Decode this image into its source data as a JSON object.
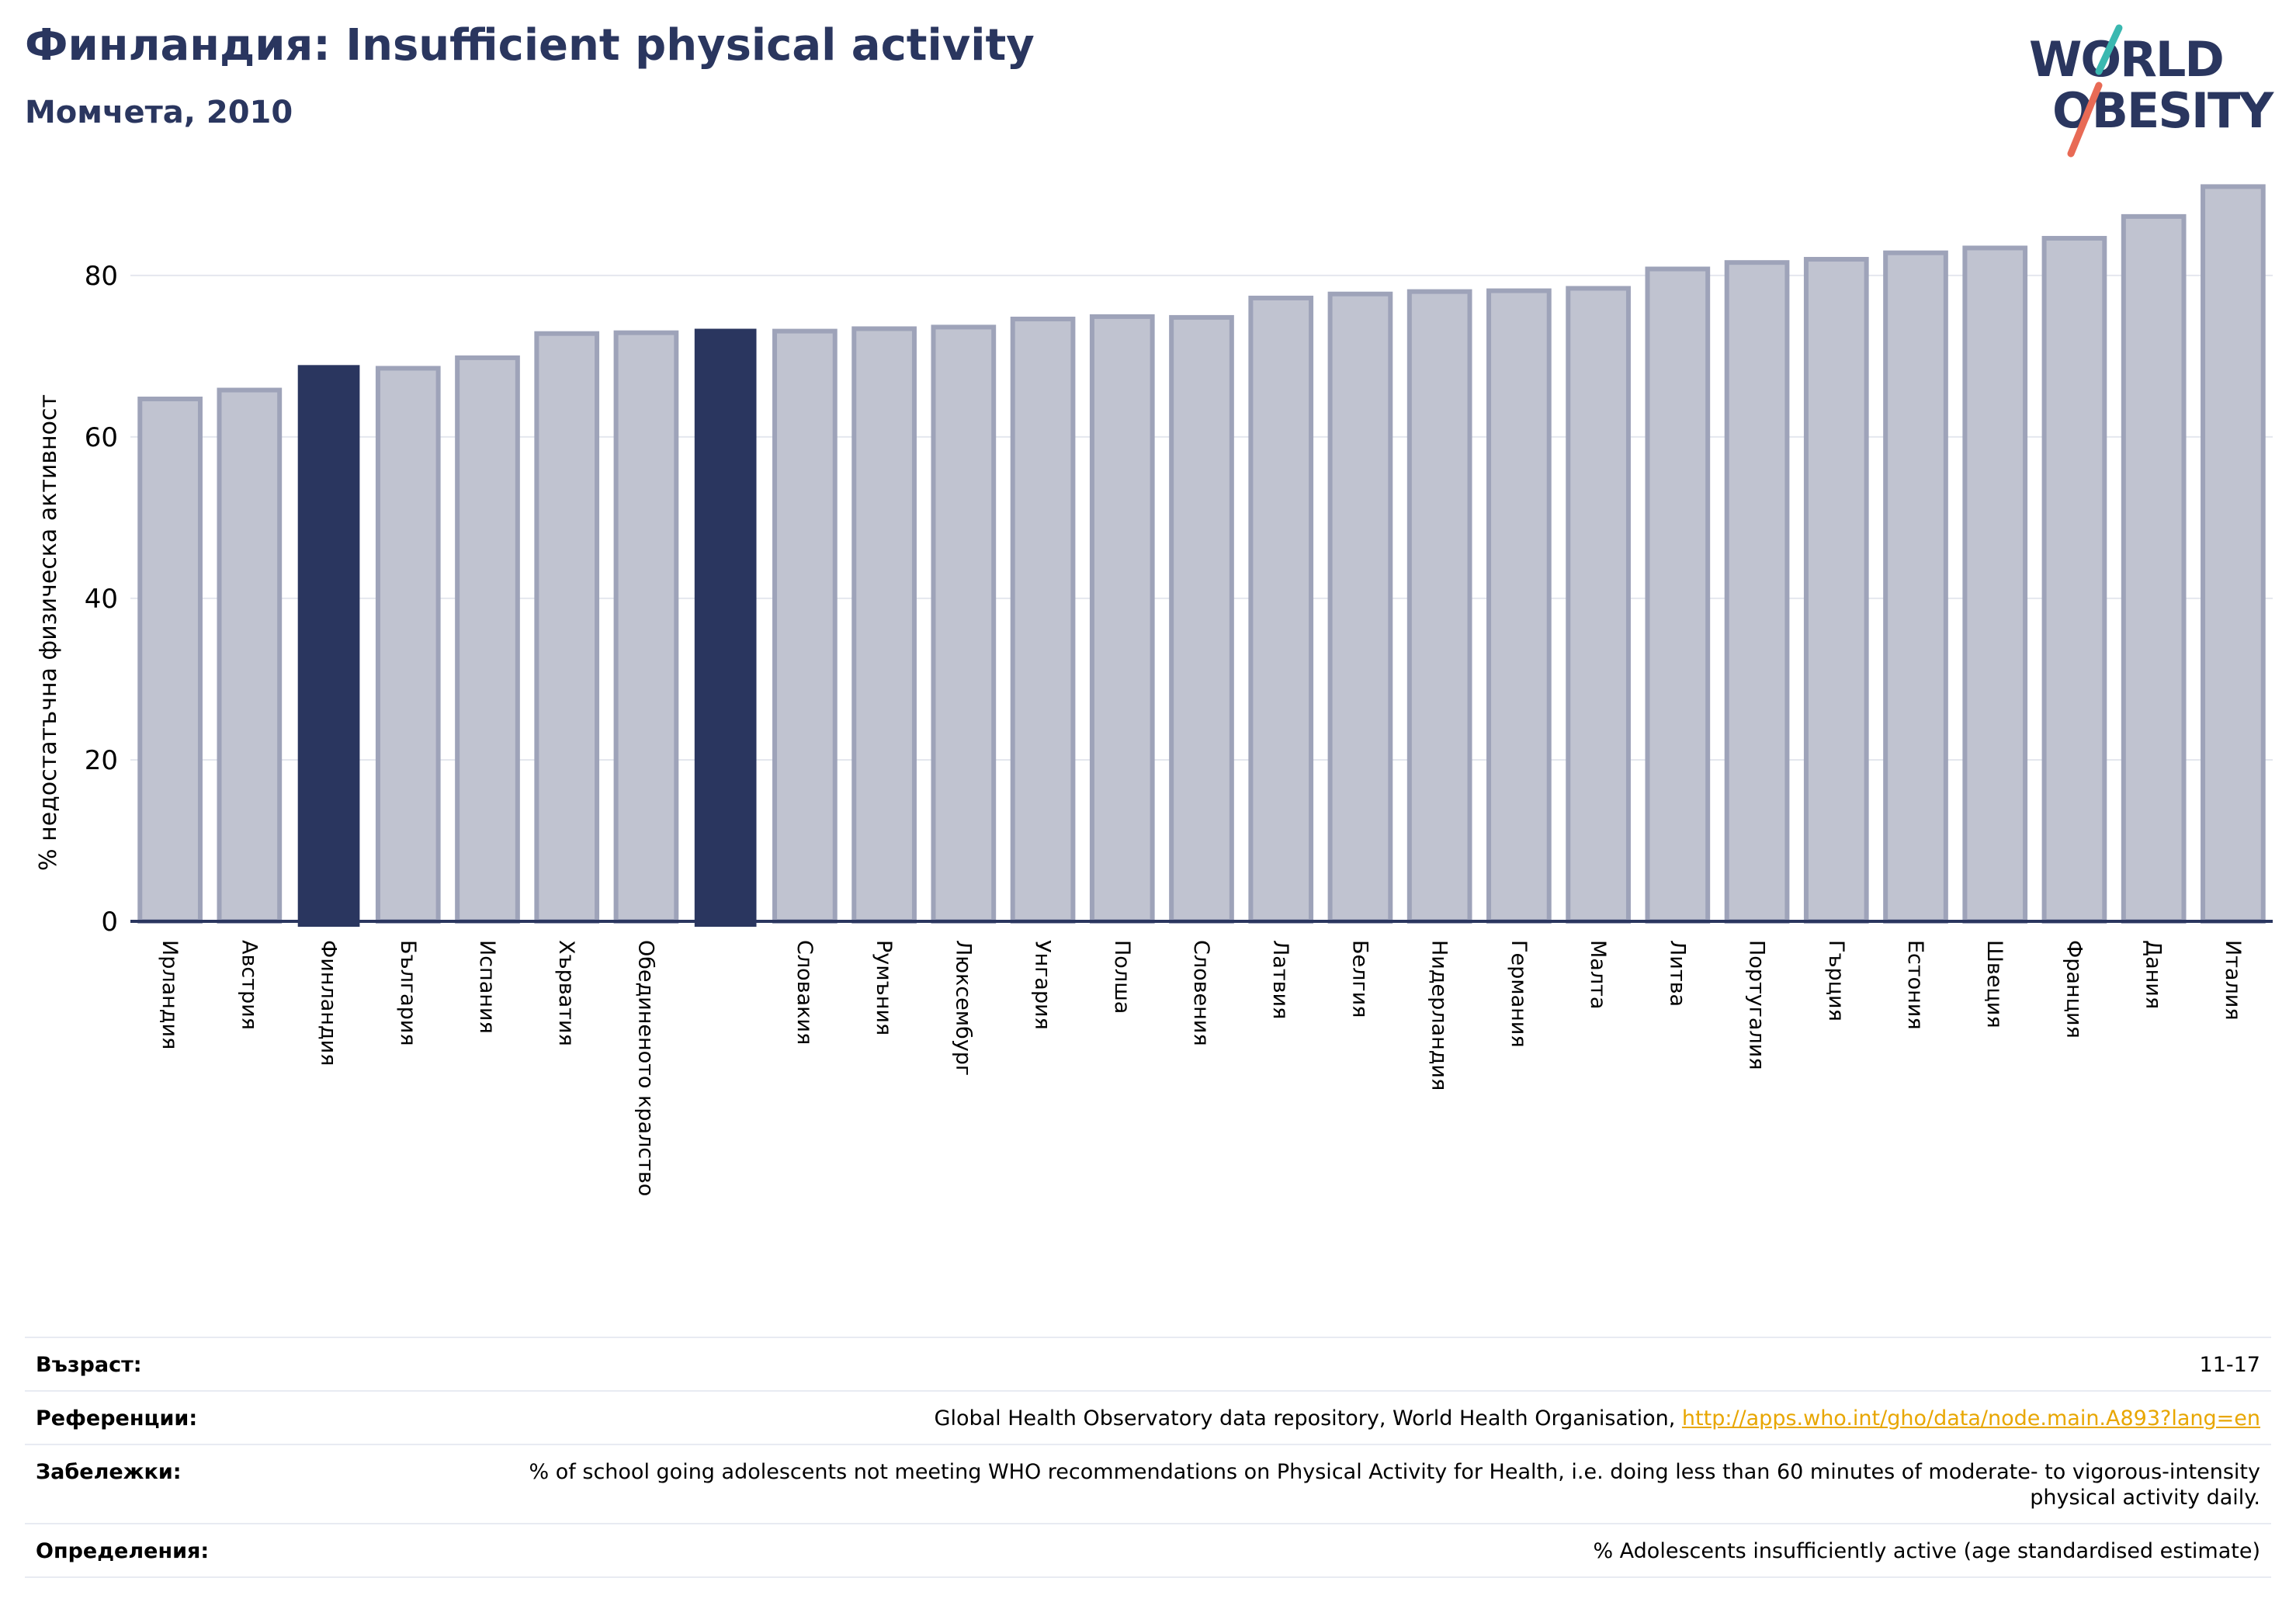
{
  "header": {
    "title": "Финландия: Insufficient physical activity",
    "subtitle": "Момчета, 2010"
  },
  "logo": {
    "line1": "WORLD",
    "line2": "OBESITY",
    "slash_color_top": "#3ab8b0",
    "slash_color_bottom": "#e86a55"
  },
  "colors": {
    "bar": "#c0c3d0",
    "bar_border": "#9ea3b9",
    "highlight": "#2a365f",
    "axis": "#2a365f",
    "grid": "#e4e7ee"
  },
  "chart_data": {
    "type": "bar",
    "ylabel": "% недостатъчна физическа активност",
    "ylim": [
      0,
      92
    ],
    "yticks": [
      0,
      20,
      40,
      60,
      80
    ],
    "grid": true,
    "categories": [
      "Ирландия",
      "Австрия",
      "Финландия",
      "България",
      "Испания",
      "Хърватия",
      "Обединеното кралство",
      "",
      "Словакия",
      "Румъния",
      "Люксембург",
      "Унгария",
      "Полша",
      "Словения",
      "Латвия",
      "Белгия",
      "Нидерландия",
      "Германия",
      "Малта",
      "Литва",
      "Португалия",
      "Гърция",
      "Естония",
      "Швеция",
      "Франция",
      "Дания",
      "Италия"
    ],
    "values": [
      64.7,
      65.8,
      68.8,
      68.5,
      69.8,
      72.8,
      72.9,
      73.3,
      73.1,
      73.4,
      73.6,
      74.6,
      74.9,
      74.8,
      77.2,
      77.7,
      78.0,
      78.1,
      78.4,
      80.8,
      81.6,
      82.0,
      82.8,
      83.4,
      84.6,
      87.3,
      91.0
    ],
    "highlight": [
      2,
      7
    ]
  },
  "footer": {
    "age_label": "Възраст:",
    "age_value": "11-17",
    "refs_label": "Референции:",
    "refs_text": "Global Health Observatory data repository, World Health Organisation, ",
    "refs_link": "http://apps.who.int/gho/data/node.main.A893?lang=en",
    "notes_label": "Забележки:",
    "notes_value": "% of school going adolescents not meeting WHO recommendations on Physical Activity for Health, i.e. doing less than 60 minutes of moderate- to vigorous-intensity physical activity daily.",
    "def_label": "Определения:",
    "def_value": "% Adolescents insufficiently active (age standardised estimate)"
  }
}
